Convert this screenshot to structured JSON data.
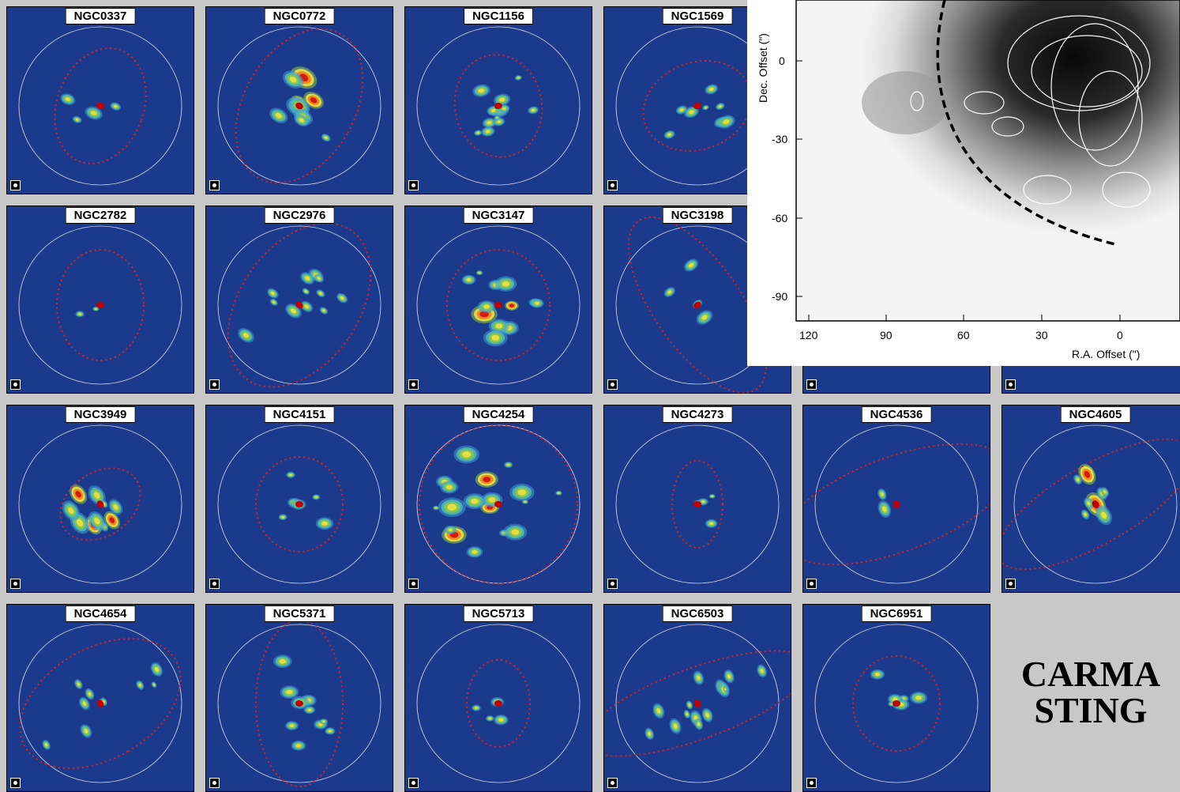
{
  "panels": [
    {
      "name": "NGC0337",
      "row": 0,
      "col": 0
    },
    {
      "name": "NGC0772",
      "row": 0,
      "col": 1
    },
    {
      "name": "NGC1156",
      "row": 0,
      "col": 2
    },
    {
      "name": "NGC1569",
      "row": 0,
      "col": 3
    },
    {
      "name": "NGC2782",
      "row": 1,
      "col": 0
    },
    {
      "name": "NGC2976",
      "row": 1,
      "col": 1
    },
    {
      "name": "NGC3147",
      "row": 1,
      "col": 2
    },
    {
      "name": "NGC3198",
      "row": 1,
      "col": 3
    },
    {
      "name": "",
      "row": 1,
      "col": 4
    },
    {
      "name": "",
      "row": 1,
      "col": 5
    },
    {
      "name": "NGC3949",
      "row": 2,
      "col": 0
    },
    {
      "name": "NGC4151",
      "row": 2,
      "col": 1
    },
    {
      "name": "NGC4254",
      "row": 2,
      "col": 2
    },
    {
      "name": "NGC4273",
      "row": 2,
      "col": 3
    },
    {
      "name": "NGC4536",
      "row": 2,
      "col": 4
    },
    {
      "name": "NGC4605",
      "row": 2,
      "col": 5
    },
    {
      "name": "NGC4654",
      "row": 3,
      "col": 0
    },
    {
      "name": "NGC5371",
      "row": 3,
      "col": 1
    },
    {
      "name": "NGC5713",
      "row": 3,
      "col": 2
    },
    {
      "name": "NGC6503",
      "row": 3,
      "col": 3
    },
    {
      "name": "NGC6951",
      "row": 3,
      "col": 4
    }
  ],
  "inset": {
    "y_axis_title": "Dec. Offset (\")",
    "x_axis_title": "R.A. Offset (\")",
    "y_ticks": [
      "0",
      "-30",
      "-60",
      "-90"
    ],
    "x_ticks": [
      "120",
      "90",
      "60",
      "30",
      "0"
    ]
  },
  "caption": {
    "line1": "CARMA",
    "line2": "STING"
  },
  "colors": {
    "panel_bg": "#1b3a8c",
    "ellipse_red": "#e02020",
    "ellipse_white": "#ffffff",
    "label_bg": "#ffffff"
  }
}
